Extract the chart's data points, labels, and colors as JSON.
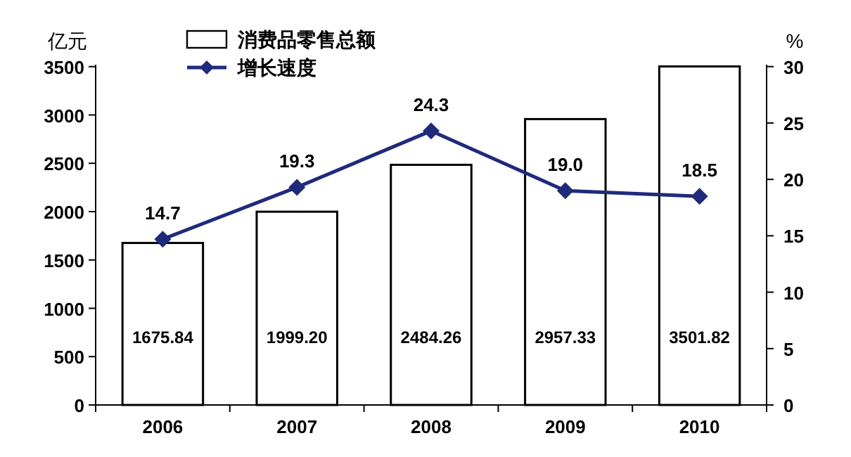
{
  "chart_data": {
    "type": "bar",
    "categories": [
      "2006",
      "2007",
      "2008",
      "2009",
      "2010"
    ],
    "ylabel": "亿元",
    "y2label": "%",
    "ylim": [
      0,
      3520
    ],
    "yticks": [
      0,
      500,
      1000,
      1500,
      2000,
      2500,
      3000,
      3500
    ],
    "y2lim": [
      0,
      30.17
    ],
    "y2ticks": [
      0,
      5,
      10,
      15,
      20,
      25,
      30
    ],
    "legend": "top left",
    "series": [
      {
        "name": "消费品零售总额",
        "color": "#ffffff",
        "values": [
          1675.84,
          1999.2,
          2484.26,
          2957.33,
          3501.82
        ],
        "value_labels": [
          "1675.84",
          "1999.20",
          "2484.26",
          "2957.33",
          "3501.82"
        ]
      },
      {
        "name": "增长速度",
        "type": "line",
        "axis": "y2",
        "marker": "diamond",
        "color": "#1f2a7a",
        "values": [
          14.7,
          19.3,
          24.3,
          19.0,
          18.5
        ],
        "value_labels": [
          "14.7",
          "19.3",
          "24.3",
          "19.0",
          "18.5"
        ]
      }
    ]
  }
}
